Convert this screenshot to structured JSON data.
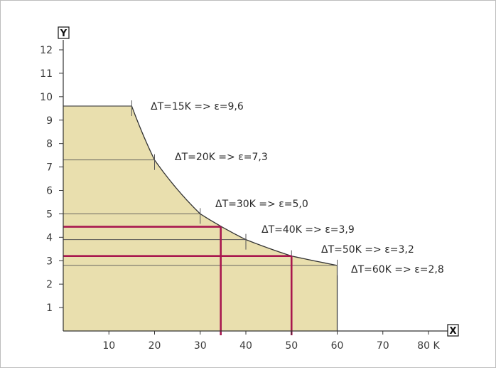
{
  "chart_data": {
    "type": "area",
    "title": "",
    "xlabel": "X",
    "ylabel": "Y",
    "xlim": [
      0,
      80
    ],
    "ylim": [
      0,
      12
    ],
    "x_ticks": [
      10,
      20,
      30,
      40,
      50,
      60,
      70,
      80
    ],
    "x_tick_labels": [
      "10",
      "20",
      "30",
      "40",
      "50",
      "60",
      "70",
      "80 K"
    ],
    "y_ticks": [
      1,
      2,
      3,
      4,
      5,
      6,
      7,
      8,
      9,
      10,
      11,
      12
    ],
    "y_tick_labels": [
      "1",
      "2",
      "3",
      "4",
      "5",
      "6",
      "7",
      "8",
      "9",
      "10",
      "11",
      "12"
    ],
    "grid": false,
    "area_color": "#e9dfae",
    "highlight_color": "#a8174f",
    "curve": {
      "x": [
        15,
        20,
        30,
        40,
        50,
        60
      ],
      "y": [
        9.6,
        7.3,
        5.0,
        3.9,
        3.2,
        2.8
      ]
    },
    "levels": [
      {
        "x": 15,
        "y": 9.6,
        "label": "ΔT=15K  =>  ε=9,6"
      },
      {
        "x": 20,
        "y": 7.3,
        "label": "ΔT=20K  =>  ε=7,3"
      },
      {
        "x": 30,
        "y": 5.0,
        "label": "ΔT=30K  =>  ε=5,0"
      },
      {
        "x": 40,
        "y": 3.9,
        "label": "ΔT=40K  =>  ε=3,9"
      },
      {
        "x": 50,
        "y": 3.2,
        "label": "ΔT=50K  =>  ε=3,2"
      },
      {
        "x": 60,
        "y": 2.8,
        "label": "ΔT=60K  =>  ε=2,8"
      }
    ],
    "highlights": [
      {
        "x": 34.5,
        "y": 4.45
      },
      {
        "x": 50,
        "y": 3.2
      }
    ]
  }
}
